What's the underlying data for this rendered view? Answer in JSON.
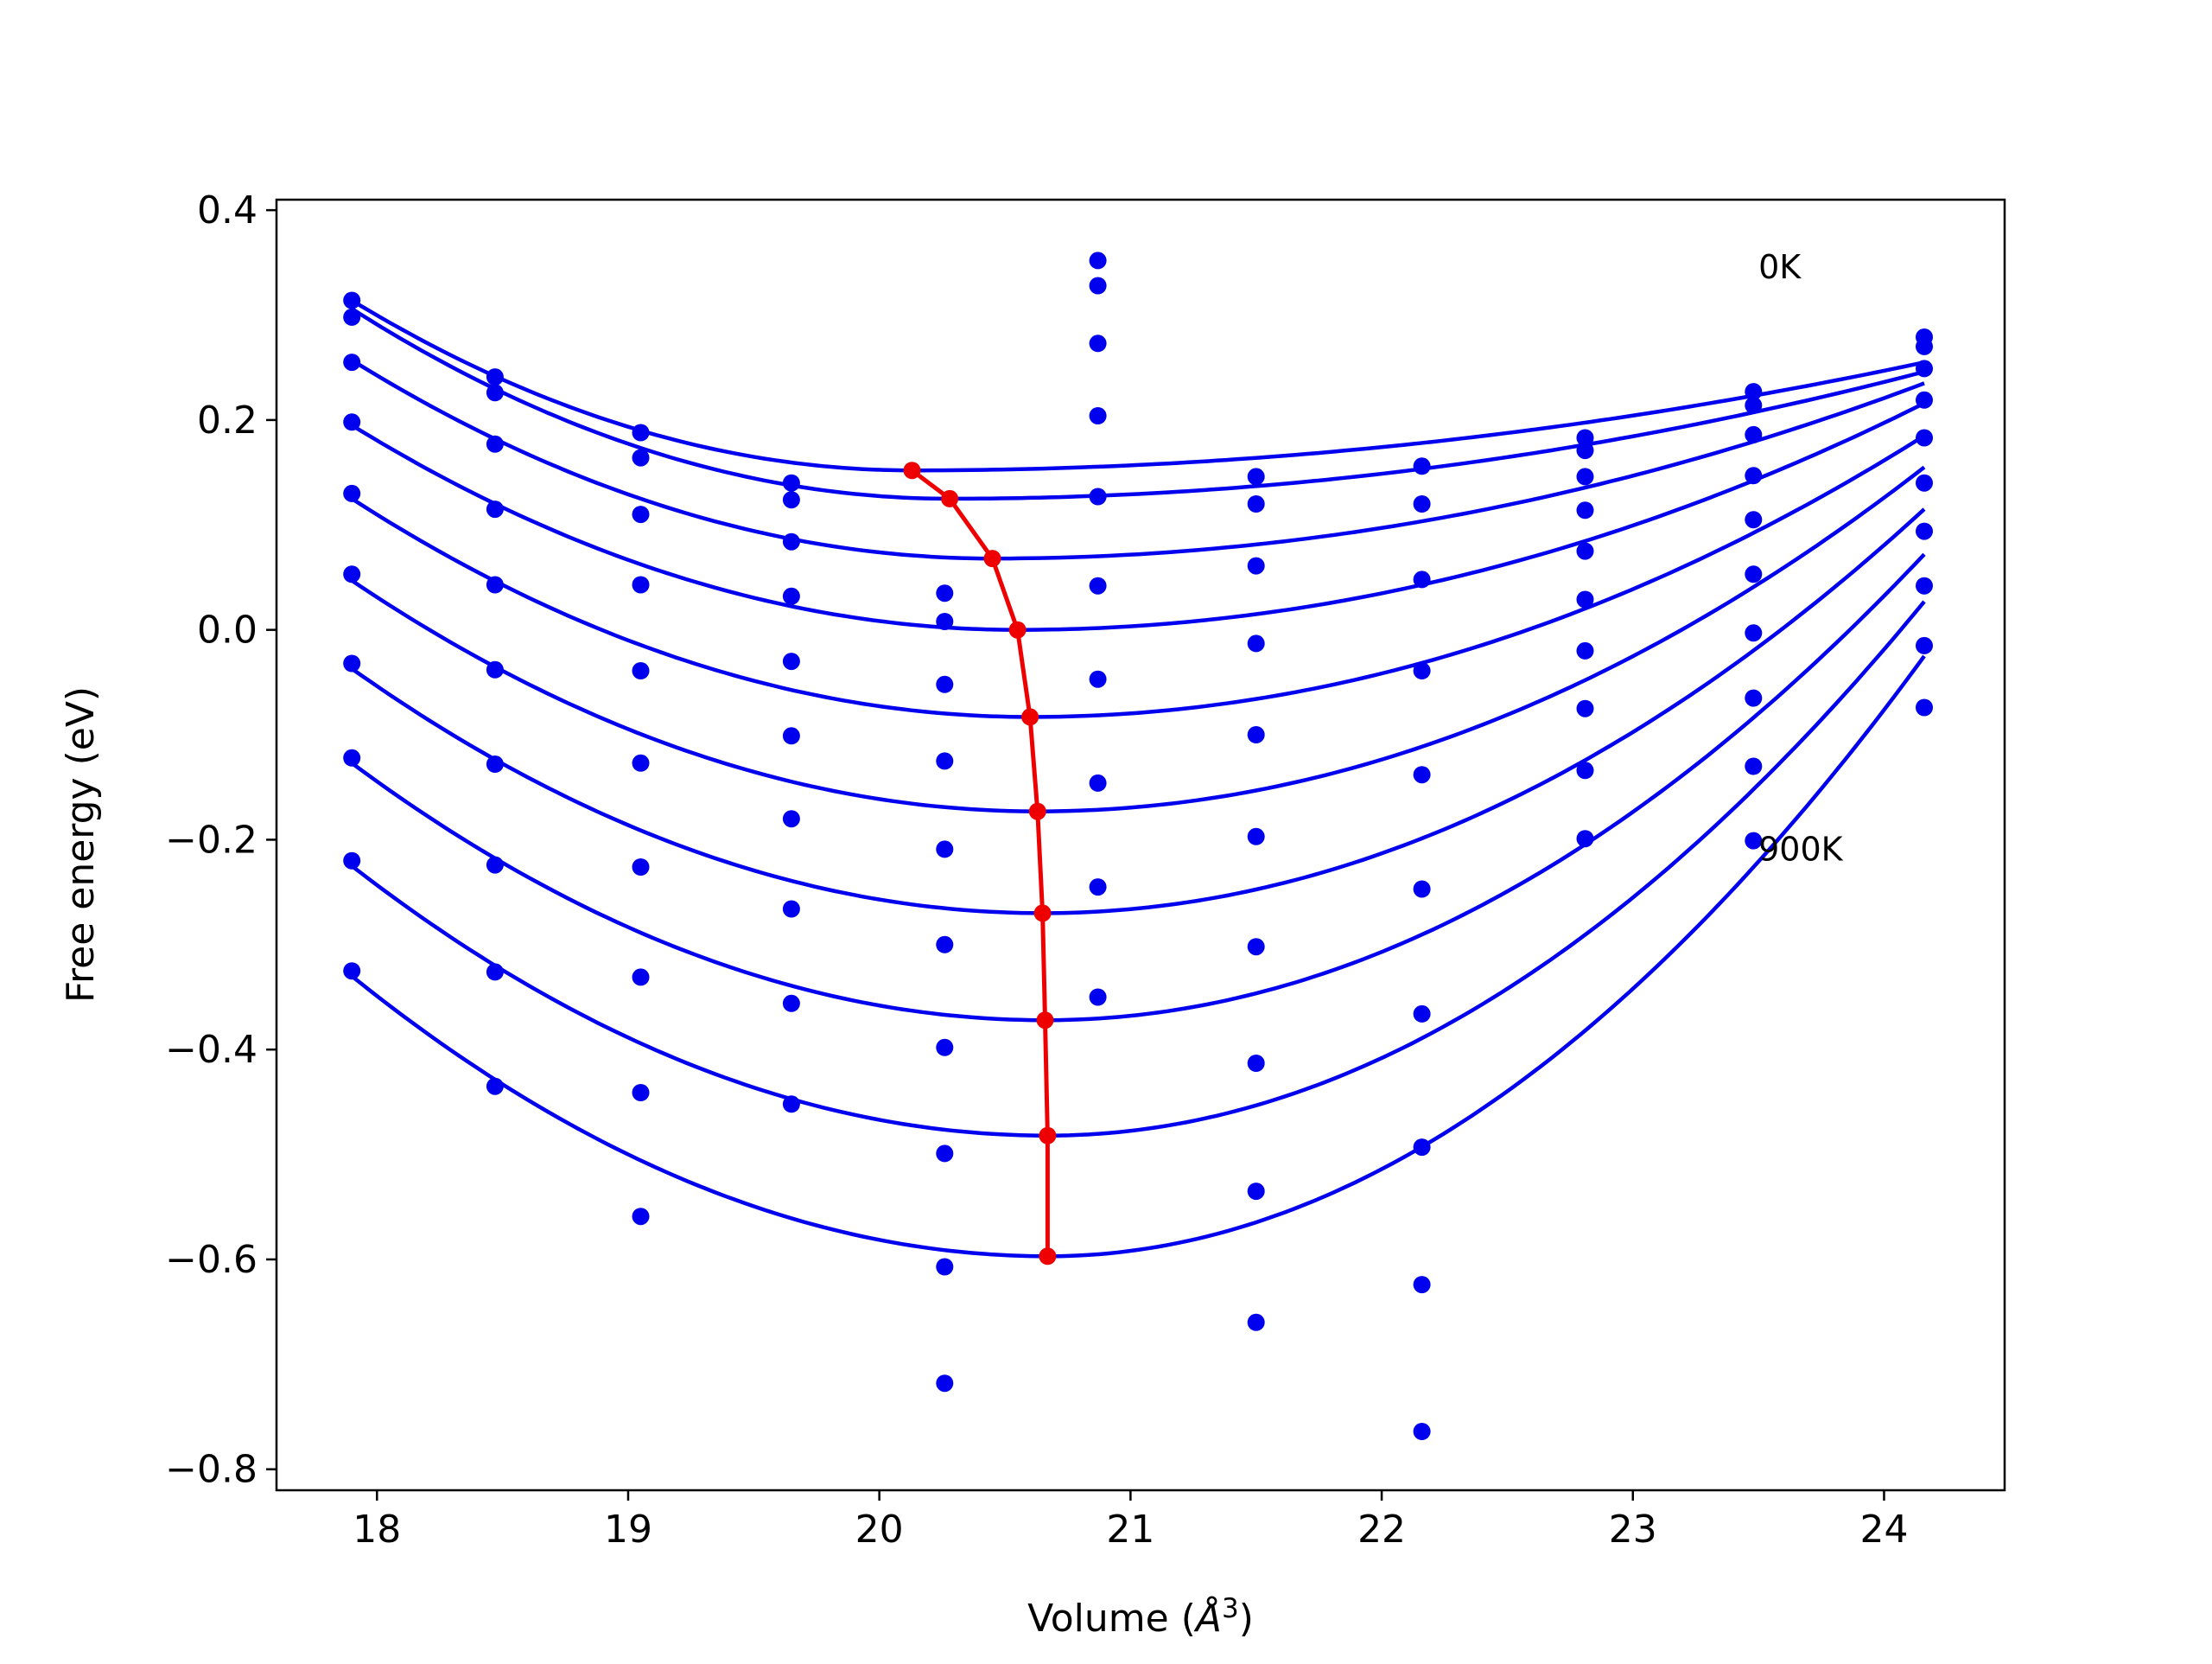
{
  "chart_data": {
    "type": "line",
    "title": "",
    "xlabel": "Volume (",
    "xlabel_unit_base": "Å",
    "xlabel_unit_exp": "3",
    "xlabel_close": ")",
    "ylabel": "Free energy (eV)",
    "xlim": [
      17.6,
      24.48
    ],
    "ylim": [
      -0.82,
      0.41
    ],
    "xticks": [
      18,
      19,
      20,
      21,
      22,
      23,
      24
    ],
    "yticks": [
      -0.8,
      -0.6,
      -0.4,
      -0.2,
      0.0,
      0.2,
      0.4
    ],
    "ytick_labels": [
      "−0.8",
      "−0.6",
      "−0.4",
      "−0.2",
      "0.0",
      "0.2",
      "0.4"
    ],
    "xtick_labels": [
      "18",
      "19",
      "20",
      "21",
      "22",
      "23",
      "24"
    ],
    "grid": false,
    "annotations": [
      {
        "text": "0K",
        "x": 23.5,
        "y": 0.335
      },
      {
        "text": "900K",
        "x": 23.5,
        "y": -0.22
      }
    ],
    "colors": {
      "series": "#0000ee",
      "minima": "#ee0000"
    },
    "volumes": [
      17.9,
      18.47,
      19.05,
      19.65,
      20.26,
      20.87,
      21.5,
      22.16,
      22.81,
      23.48,
      24.16
    ],
    "temperature_series": [
      {
        "points": [
          0.314,
          0.241,
          0.188,
          0.14,
          0.035,
          0.352,
          0.146,
          0.156,
          0.183,
          0.227,
          0.279
        ],
        "fit": {
          "v0": 20.13,
          "e0": 0.152,
          "xl": 17.9,
          "yl": 0.314,
          "xr": 24.16,
          "yr": 0.255
        }
      },
      {
        "points": [
          0.298,
          0.226,
          0.164,
          0.124,
          0.008,
          0.328,
          0.12,
          0.12,
          0.171,
          0.214,
          0.27
        ],
        "fit": {
          "v0": 20.28,
          "e0": 0.125,
          "xl": 17.9,
          "yl": 0.306,
          "xr": 24.16,
          "yr": 0.246
        }
      },
      {
        "points": [
          0.255,
          0.177,
          0.11,
          0.084,
          -0.052,
          0.273,
          0.061,
          0.048,
          0.146,
          0.186,
          0.249
        ],
        "fit": {
          "v0": 20.45,
          "e0": 0.068,
          "xl": 17.9,
          "yl": 0.257,
          "xr": 24.16,
          "yr": 0.235
        }
      },
      {
        "points": [
          0.198,
          0.115,
          0.043,
          0.032,
          -0.125,
          0.204,
          -0.013,
          -0.039,
          0.114,
          0.147,
          0.219
        ],
        "fit": {
          "v0": 20.55,
          "e0": 0.0,
          "xl": 17.9,
          "yl": 0.195,
          "xr": 24.16,
          "yr": 0.216
        }
      },
      {
        "points": [
          0.13,
          0.043,
          -0.039,
          -0.03,
          -0.209,
          0.127,
          -0.1,
          -0.138,
          0.075,
          0.105,
          0.183
        ],
        "fit": {
          "v0": 20.6,
          "e0": -0.083,
          "xl": 17.9,
          "yl": 0.125,
          "xr": 24.16,
          "yr": 0.185
        }
      },
      {
        "points": [
          0.053,
          -0.038,
          -0.127,
          -0.101,
          -0.3,
          0.042,
          -0.197,
          -0.247,
          0.029,
          0.053,
          0.14
        ],
        "fit": {
          "v0": 20.63,
          "e0": -0.173,
          "xl": 17.9,
          "yl": 0.047,
          "xr": 24.16,
          "yr": 0.155
        }
      },
      {
        "points": [
          -0.032,
          -0.128,
          -0.226,
          -0.18,
          -0.398,
          -0.047,
          -0.302,
          -0.366,
          -0.02,
          -0.003,
          0.094
        ],
        "fit": {
          "v0": 20.65,
          "e0": -0.27,
          "xl": 17.9,
          "yl": -0.037,
          "xr": 24.16,
          "yr": 0.115
        }
      },
      {
        "points": [
          -0.122,
          -0.224,
          -0.331,
          -0.266,
          -0.499,
          -0.146,
          -0.413,
          -0.493,
          -0.075,
          -0.065,
          0.042
        ],
        "fit": {
          "v0": 20.66,
          "e0": -0.372,
          "xl": 17.9,
          "yl": -0.127,
          "xr": 24.16,
          "yr": 0.072
        }
      },
      {
        "points": [
          -0.22,
          -0.326,
          -0.441,
          -0.356,
          -0.607,
          -0.245,
          -0.535,
          -0.624,
          -0.134,
          -0.13,
          -0.015
        ],
        "fit": {
          "v0": 20.67,
          "e0": -0.482,
          "xl": 17.9,
          "yl": -0.225,
          "xr": 24.16,
          "yr": 0.027
        }
      },
      {
        "points": [
          -0.325,
          -0.435,
          -0.559,
          -0.452,
          -0.718,
          -0.35,
          -0.66,
          -0.764,
          -0.199,
          -0.201,
          -0.074
        ],
        "fit": {
          "v0": 20.67,
          "e0": -0.597,
          "xl": 17.9,
          "yl": -0.33,
          "xr": 24.16,
          "yr": -0.025
        }
      }
    ],
    "minima_path": {
      "x": [
        20.13,
        20.28,
        20.45,
        20.55,
        20.6,
        20.63,
        20.65,
        20.66,
        20.67,
        20.67
      ],
      "y": [
        0.152,
        0.125,
        0.068,
        0.0,
        -0.083,
        -0.173,
        -0.27,
        -0.372,
        -0.482,
        -0.597
      ]
    }
  }
}
